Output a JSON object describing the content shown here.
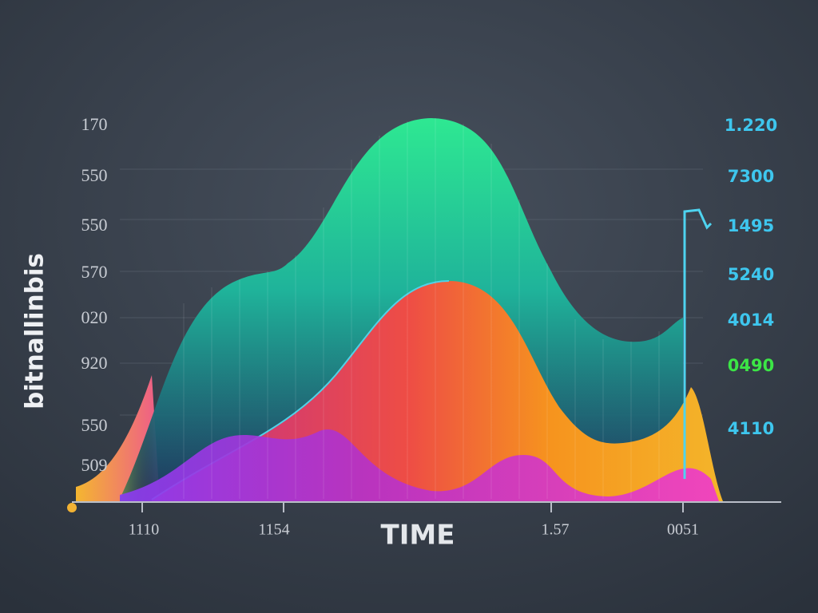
{
  "axis_title": "bitnallinbis",
  "left_labels": [
    "170",
    "550",
    "550",
    "570",
    "020",
    "920",
    "550",
    "509"
  ],
  "right_labels": [
    "1.220",
    "7300",
    "1495",
    "5240",
    "4014",
    "0490",
    "4110"
  ],
  "bottom_labels": [
    "1110",
    "1154",
    "TIME",
    "1.57",
    "0051"
  ]
}
